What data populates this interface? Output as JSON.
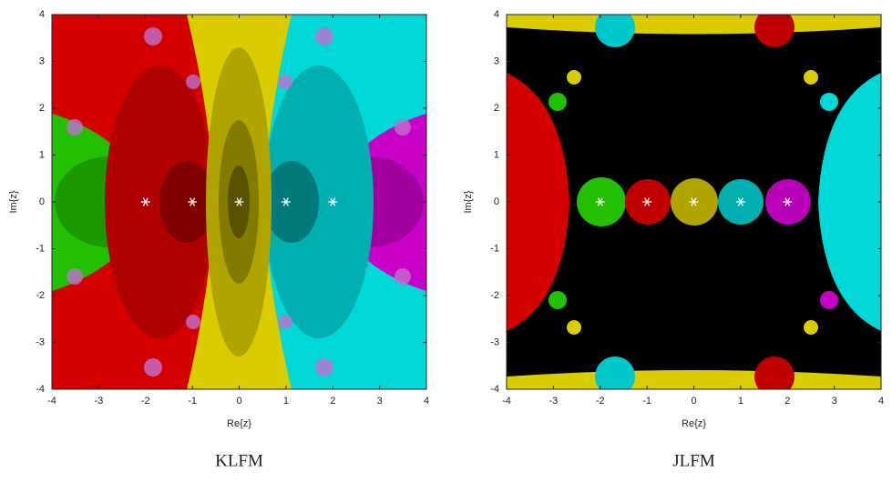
{
  "chart_data": [
    {
      "type": "scatter",
      "caption": "KLFM",
      "xlabel": "Re{z}",
      "ylabel": "Im{z}",
      "x": [
        -2,
        -1,
        0,
        1,
        2
      ],
      "values": [
        0,
        0,
        0,
        0,
        0
      ],
      "color": "#ffffff",
      "xlim": [
        -4,
        4
      ],
      "ylim": [
        -4,
        4
      ],
      "xticks": [
        -4,
        -3,
        -2,
        -1,
        0,
        1,
        2,
        3,
        4
      ],
      "yticks": [
        -4,
        -3,
        -2,
        -1,
        0,
        1,
        2,
        3,
        4
      ]
    },
    {
      "type": "scatter",
      "caption": "JLFM",
      "xlabel": "Re{z}",
      "ylabel": "Im{z}",
      "x": [
        -2,
        -1,
        0,
        1,
        2
      ],
      "values": [
        0,
        0,
        0,
        0,
        0
      ],
      "color": "#ffffff",
      "xlim": [
        -4,
        4
      ],
      "ylim": [
        -4,
        4
      ],
      "xticks": [
        -4,
        -3,
        -2,
        -1,
        0,
        1,
        2,
        3,
        4
      ],
      "yticks": [
        -4,
        -3,
        -2,
        -1,
        0,
        1,
        2,
        3,
        4
      ]
    }
  ]
}
